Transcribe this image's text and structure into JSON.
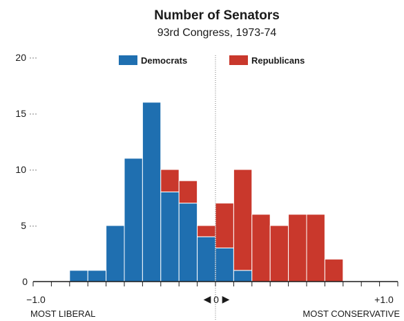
{
  "chart_data": {
    "type": "bar",
    "title": "Number of Senators",
    "subtitle": "93rd Congress, 1973-74",
    "xlim": [
      -1.0,
      1.0
    ],
    "ylim": [
      0,
      20
    ],
    "bin_width": 0.1,
    "y_ticks": [
      "0",
      "5",
      "10",
      "15",
      "20"
    ],
    "x_tick_labels": {
      "left": "−1.0",
      "center": "0",
      "right": "+1.0"
    },
    "x_end_labels": {
      "left": "MOST LIBERAL",
      "right": "MOST CONSERVATIVE"
    },
    "center_arrows": {
      "left": "◀",
      "right": "▶"
    },
    "legend_position": "top-center",
    "colors": {
      "Democrats": "#1f6fb0",
      "Republicans": "#c9382c"
    },
    "series": [
      {
        "name": "Democrats",
        "bins": [
          {
            "x0": -0.8,
            "x1": -0.7,
            "value": 1
          },
          {
            "x0": -0.7,
            "x1": -0.6,
            "value": 1
          },
          {
            "x0": -0.6,
            "x1": -0.5,
            "value": 5
          },
          {
            "x0": -0.5,
            "x1": -0.4,
            "value": 11
          },
          {
            "x0": -0.4,
            "x1": -0.3,
            "value": 16
          },
          {
            "x0": -0.3,
            "x1": -0.2,
            "value": 8
          },
          {
            "x0": -0.2,
            "x1": -0.1,
            "value": 7
          },
          {
            "x0": -0.1,
            "x1": 0.0,
            "value": 4
          },
          {
            "x0": 0.0,
            "x1": 0.1,
            "value": 3
          },
          {
            "x0": 0.1,
            "x1": 0.2,
            "value": 1
          }
        ]
      },
      {
        "name": "Republicans",
        "bins": [
          {
            "x0": -0.3,
            "x1": -0.2,
            "value": 2
          },
          {
            "x0": -0.2,
            "x1": -0.1,
            "value": 2
          },
          {
            "x0": -0.1,
            "x1": 0.0,
            "value": 1
          },
          {
            "x0": 0.0,
            "x1": 0.1,
            "value": 4
          },
          {
            "x0": 0.1,
            "x1": 0.2,
            "value": 9
          },
          {
            "x0": 0.2,
            "x1": 0.3,
            "value": 6
          },
          {
            "x0": 0.3,
            "x1": 0.4,
            "value": 5
          },
          {
            "x0": 0.4,
            "x1": 0.5,
            "value": 6
          },
          {
            "x0": 0.5,
            "x1": 0.6,
            "value": 6
          },
          {
            "x0": 0.6,
            "x1": 0.7,
            "value": 2
          }
        ]
      }
    ]
  }
}
